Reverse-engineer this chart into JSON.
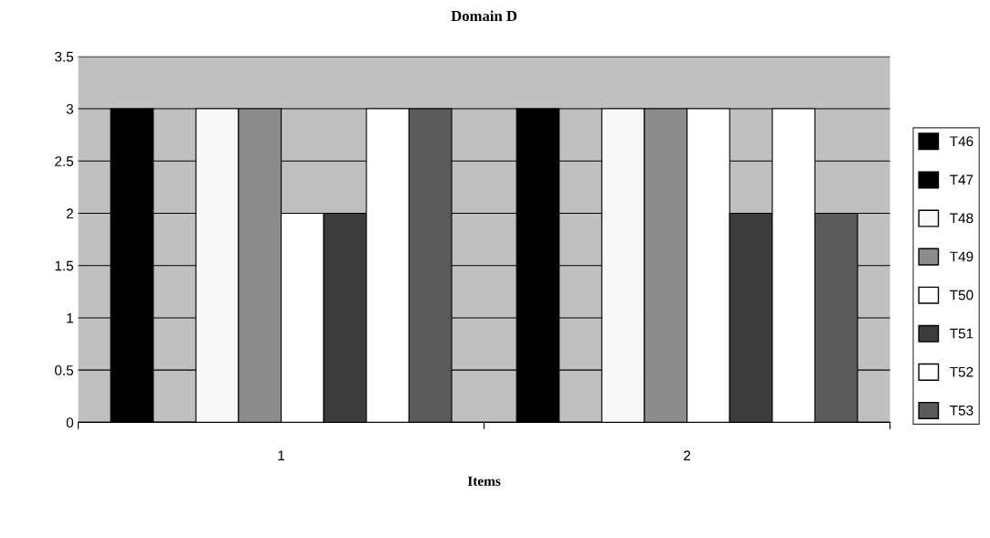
{
  "chart_data": {
    "type": "bar",
    "title": "Domain D",
    "xlabel": "Items",
    "categories": [
      "1",
      "2"
    ],
    "series": [
      {
        "name": "T46",
        "color": "#000000",
        "values": [
          3,
          3
        ]
      },
      {
        "name": "T47",
        "color": "#000000",
        "values": [
          0,
          0
        ]
      },
      {
        "name": "T48",
        "color": "#f8f8f8",
        "values": [
          3,
          3
        ]
      },
      {
        "name": "T49",
        "color": "#8c8c8c",
        "values": [
          3,
          3
        ]
      },
      {
        "name": "T50",
        "color": "#ffffff",
        "values": [
          2,
          3
        ]
      },
      {
        "name": "T51",
        "color": "#3c3c3c",
        "values": [
          2,
          2
        ]
      },
      {
        "name": "T52",
        "color": "#ffffff",
        "values": [
          3,
          3
        ]
      },
      {
        "name": "T53",
        "color": "#5a5a5a",
        "values": [
          3,
          2
        ]
      }
    ],
    "ylim": [
      0,
      3.5
    ],
    "yticks": [
      0,
      0.5,
      1,
      1.5,
      2,
      2.5,
      3,
      3.5
    ],
    "grid": "y",
    "legend": "right"
  }
}
